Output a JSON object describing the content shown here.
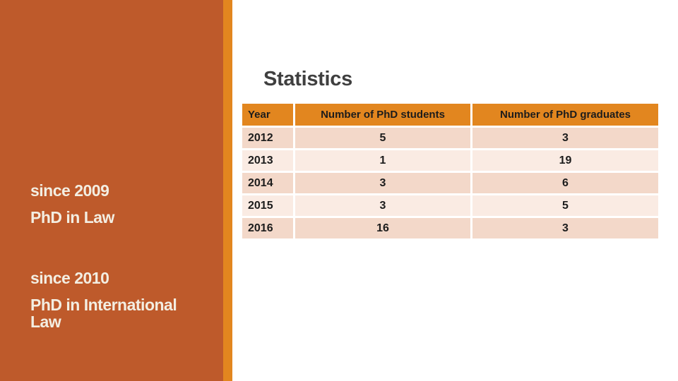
{
  "main": {
    "title": "Statistics"
  },
  "sidebar": {
    "programs": [
      {
        "since": "since 2009",
        "title": "PhD in Law"
      },
      {
        "since": "since 2010",
        "title": "PhD in International Law"
      }
    ]
  },
  "table": {
    "headers": [
      "Year",
      "Number of PhD students",
      "Number of PhD  graduates"
    ],
    "rows": [
      {
        "year": "2012",
        "students": "5",
        "graduates": "3"
      },
      {
        "year": "2013",
        "students": "1",
        "graduates": "19"
      },
      {
        "year": "2014",
        "students": "3",
        "graduates": "6"
      },
      {
        "year": "2015",
        "students": "3",
        "graduates": "5"
      },
      {
        "year": "2016",
        "students": "16",
        "graduates": "3"
      }
    ]
  },
  "colors": {
    "sidebar_bg": "#BE5A2B",
    "accent_stripe": "#E2861F",
    "table_header_bg": "#E2861F",
    "row_shade_dark": "#F3D8C9",
    "row_shade_light": "#FAEBE3",
    "title_text": "#3F3F3F",
    "sidebar_text": "#F3EEE2",
    "cell_text": "#1C1C1C"
  }
}
